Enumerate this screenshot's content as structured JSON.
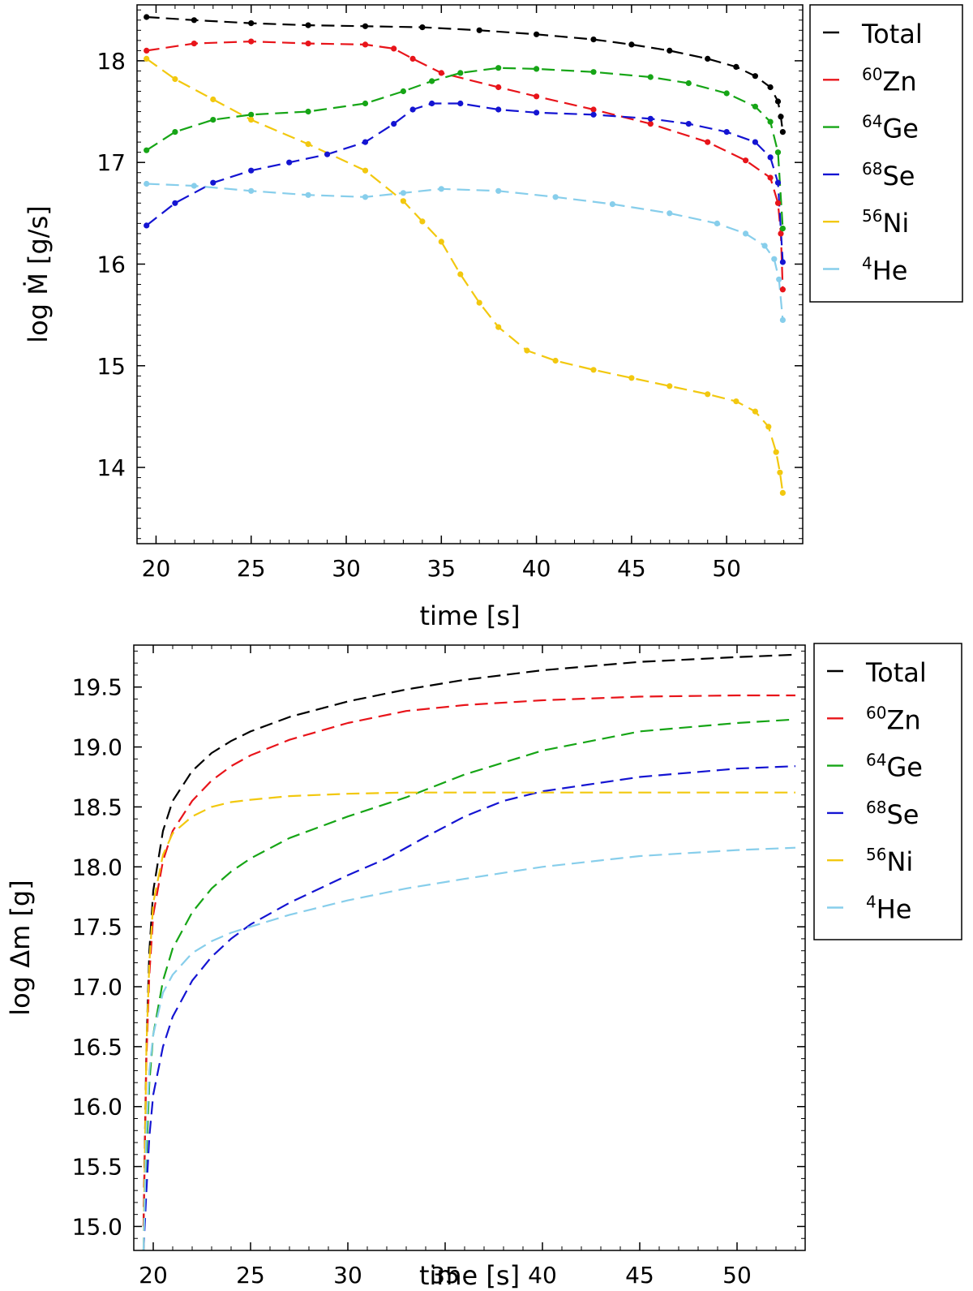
{
  "chart_data": [
    {
      "type": "line",
      "xlabel": "time [s]",
      "ylabel": "log Ṁ [g/s]",
      "xlim": [
        19,
        54
      ],
      "ylim": [
        13.25,
        18.55
      ],
      "xticks": [
        "20",
        "25",
        "30",
        "35",
        "40",
        "45",
        "50"
      ],
      "yticks": [
        "14",
        "15",
        "16",
        "17",
        "18"
      ],
      "legend_position": "outside-right-top",
      "markers": "filled circles on dashed lines",
      "series": [
        {
          "name": "Total",
          "sup": "",
          "base": "Total",
          "color": "#000000",
          "x": [
            19.5,
            22,
            25,
            28,
            31,
            34,
            37,
            40,
            43,
            45,
            47,
            49,
            50.5,
            51.5,
            52.3,
            52.7,
            52.85,
            52.95
          ],
          "y": [
            18.43,
            18.4,
            18.37,
            18.35,
            18.34,
            18.33,
            18.3,
            18.26,
            18.21,
            18.16,
            18.1,
            18.02,
            17.94,
            17.85,
            17.74,
            17.6,
            17.45,
            17.3
          ]
        },
        {
          "name": "60Zn",
          "sup": "60",
          "base": "Zn",
          "color": "#e8141a",
          "x": [
            19.5,
            22,
            25,
            28,
            31,
            32.5,
            33.5,
            35,
            38,
            40,
            43,
            46,
            49,
            51,
            52.3,
            52.7,
            52.85,
            52.95
          ],
          "y": [
            18.1,
            18.17,
            18.19,
            18.17,
            18.16,
            18.12,
            18.02,
            17.88,
            17.74,
            17.65,
            17.52,
            17.38,
            17.2,
            17.02,
            16.85,
            16.6,
            16.3,
            15.75
          ]
        },
        {
          "name": "64Ge",
          "sup": "64",
          "base": "Ge",
          "color": "#16a516",
          "x": [
            19.5,
            21,
            23,
            25,
            28,
            31,
            33,
            34.5,
            36,
            38,
            40,
            43,
            46,
            48,
            50,
            51.5,
            52.3,
            52.7,
            52.95
          ],
          "y": [
            17.12,
            17.3,
            17.42,
            17.47,
            17.5,
            17.58,
            17.7,
            17.8,
            17.88,
            17.93,
            17.92,
            17.89,
            17.84,
            17.78,
            17.68,
            17.55,
            17.4,
            17.1,
            16.35
          ]
        },
        {
          "name": "68Se",
          "sup": "68",
          "base": "Se",
          "color": "#1414d2",
          "x": [
            19.5,
            21,
            23,
            25,
            27,
            29,
            31,
            32.5,
            33.5,
            34.5,
            36,
            38,
            40,
            43,
            46,
            48,
            50,
            51.5,
            52.3,
            52.7,
            52.95
          ],
          "y": [
            16.38,
            16.6,
            16.8,
            16.92,
            17.0,
            17.08,
            17.2,
            17.38,
            17.52,
            17.58,
            17.58,
            17.52,
            17.49,
            17.47,
            17.43,
            17.38,
            17.3,
            17.2,
            17.05,
            16.8,
            16.02
          ]
        },
        {
          "name": "56Ni",
          "sup": "56",
          "base": "Ni",
          "color": "#f2c80f",
          "x": [
            19.5,
            21,
            23,
            25,
            28,
            31,
            33,
            34,
            35,
            36,
            37,
            38,
            39.5,
            41,
            43,
            45,
            47,
            49,
            50.5,
            51.5,
            52.2,
            52.6,
            52.8,
            52.95
          ],
          "y": [
            18.02,
            17.82,
            17.62,
            17.42,
            17.18,
            16.92,
            16.62,
            16.42,
            16.22,
            15.9,
            15.62,
            15.38,
            15.15,
            15.05,
            14.96,
            14.88,
            14.8,
            14.72,
            14.65,
            14.55,
            14.4,
            14.15,
            13.95,
            13.75
          ]
        },
        {
          "name": "4He",
          "sup": "4",
          "base": "He",
          "color": "#87ceeb",
          "x": [
            19.5,
            22,
            25,
            28,
            31,
            33,
            35,
            38,
            41,
            44,
            47,
            49.5,
            51,
            52,
            52.5,
            52.75,
            52.95
          ],
          "y": [
            16.79,
            16.77,
            16.72,
            16.68,
            16.66,
            16.7,
            16.74,
            16.72,
            16.66,
            16.59,
            16.5,
            16.4,
            16.3,
            16.18,
            16.05,
            15.85,
            15.45
          ]
        }
      ]
    },
    {
      "type": "line",
      "xlabel": "time [s]",
      "ylabel": "log Δm [g]",
      "xlim": [
        19,
        53.5
      ],
      "ylim": [
        14.8,
        19.85
      ],
      "xticks": [
        "20",
        "25",
        "30",
        "35",
        "40",
        "45",
        "50"
      ],
      "yticks": [
        "15.0",
        "15.5",
        "16.0",
        "16.5",
        "17.0",
        "17.5",
        "18.0",
        "18.5",
        "19.0",
        "19.5"
      ],
      "legend_position": "outside-right-top",
      "series": [
        {
          "name": "Total",
          "sup": "",
          "base": "Total",
          "color": "#000000",
          "x": [
            19.5,
            19.65,
            19.8,
            20,
            20.5,
            21,
            22,
            23,
            24,
            25,
            27,
            30,
            33,
            36,
            40,
            45,
            50,
            53
          ],
          "y": [
            15.0,
            16.5,
            17.3,
            17.8,
            18.3,
            18.55,
            18.8,
            18.95,
            19.05,
            19.13,
            19.25,
            19.38,
            19.48,
            19.56,
            19.64,
            19.71,
            19.75,
            19.77
          ]
        },
        {
          "name": "60Zn",
          "sup": "60",
          "base": "Zn",
          "color": "#e8141a",
          "x": [
            19.5,
            19.65,
            19.8,
            20,
            20.5,
            21,
            22,
            23,
            24,
            25,
            27,
            30,
            33,
            36,
            40,
            45,
            50,
            53
          ],
          "y": [
            15.0,
            16.4,
            17.1,
            17.6,
            18.05,
            18.3,
            18.55,
            18.72,
            18.84,
            18.93,
            19.06,
            19.2,
            19.3,
            19.35,
            19.39,
            19.42,
            19.43,
            19.43
          ]
        },
        {
          "name": "64Ge",
          "sup": "64",
          "base": "Ge",
          "color": "#16a516",
          "x": [
            19.5,
            19.65,
            19.8,
            20,
            20.5,
            21,
            22,
            23,
            24,
            25,
            27,
            30,
            33,
            36,
            40,
            45,
            50,
            53
          ],
          "y": [
            14.8,
            15.6,
            16.2,
            16.6,
            17.05,
            17.32,
            17.62,
            17.82,
            17.96,
            18.07,
            18.24,
            18.42,
            18.58,
            18.77,
            18.97,
            19.13,
            19.2,
            19.23
          ]
        },
        {
          "name": "68Se",
          "sup": "68",
          "base": "Se",
          "color": "#1414d2",
          "x": [
            19.5,
            19.65,
            19.8,
            20,
            20.5,
            21,
            22,
            23,
            24,
            25,
            27,
            30,
            32,
            34,
            36,
            38,
            40,
            45,
            50,
            53
          ],
          "y": [
            14.8,
            15.3,
            15.75,
            16.1,
            16.5,
            16.75,
            17.05,
            17.25,
            17.4,
            17.52,
            17.7,
            17.93,
            18.07,
            18.25,
            18.42,
            18.55,
            18.63,
            18.75,
            18.82,
            18.84
          ]
        },
        {
          "name": "56Ni",
          "sup": "56",
          "base": "Ni",
          "color": "#f2c80f",
          "x": [
            19.5,
            19.65,
            19.8,
            20,
            20.5,
            21,
            22,
            23,
            24,
            25,
            27,
            30,
            33,
            36,
            40,
            45,
            50,
            53
          ],
          "y": [
            14.8,
            16.5,
            17.2,
            17.7,
            18.1,
            18.28,
            18.42,
            18.5,
            18.54,
            18.56,
            18.59,
            18.61,
            18.62,
            18.62,
            18.62,
            18.62,
            18.62,
            18.62
          ]
        },
        {
          "name": "4He",
          "sup": "4",
          "base": "He",
          "color": "#87ceeb",
          "x": [
            19.5,
            19.65,
            19.8,
            20,
            20.5,
            21,
            22,
            23,
            24,
            25,
            27,
            30,
            33,
            36,
            40,
            45,
            50,
            53
          ],
          "y": [
            14.8,
            15.8,
            16.3,
            16.6,
            16.95,
            17.1,
            17.28,
            17.38,
            17.45,
            17.5,
            17.6,
            17.72,
            17.82,
            17.9,
            18.0,
            18.09,
            18.14,
            18.16
          ]
        }
      ]
    }
  ]
}
